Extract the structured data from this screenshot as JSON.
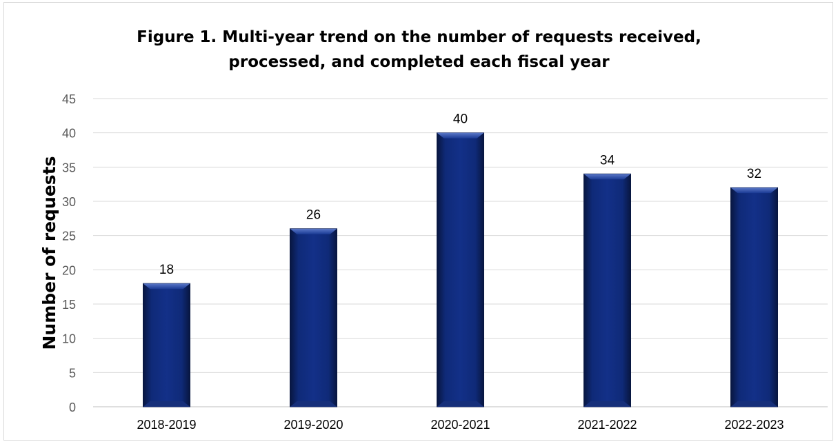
{
  "title_lines": [
    "Figure 1. Multi-year trend on the number of requests received,",
    "processed, and completed each fiscal year"
  ],
  "chart_data": {
    "type": "bar",
    "title": "Figure 1. Multi-year trend on the number of requests received, processed, and completed each fiscal year",
    "xlabel": "",
    "ylabel": "Number of requests",
    "categories": [
      "2018-2019",
      "2019-2020",
      "2020-2021",
      "2021-2022",
      "2022-2023"
    ],
    "values": [
      18,
      26,
      40,
      34,
      32
    ],
    "ylim": [
      0,
      45
    ],
    "yticks": [
      0,
      5,
      10,
      15,
      20,
      25,
      30,
      35,
      40,
      45
    ],
    "grid": true,
    "legend": "none",
    "data_labels": true,
    "bar_color": "#0d2466"
  }
}
